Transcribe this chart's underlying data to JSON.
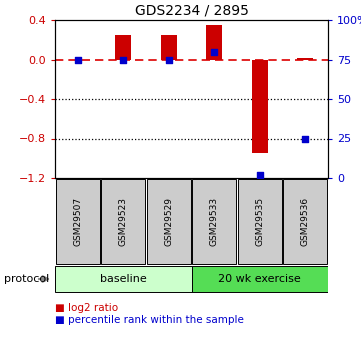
{
  "title": "GDS2234 / 2895",
  "samples": [
    "GSM29507",
    "GSM29523",
    "GSM29529",
    "GSM29533",
    "GSM29535",
    "GSM29536"
  ],
  "log2_ratios": [
    0.0,
    0.25,
    0.25,
    0.35,
    -0.95,
    0.02
  ],
  "percentile_ranks": [
    75,
    75,
    75,
    80,
    2,
    25
  ],
  "protocol_groups": [
    {
      "label": "baseline",
      "start": 0,
      "end": 3,
      "color": "#ccffcc"
    },
    {
      "label": "20 wk exercise",
      "start": 3,
      "end": 6,
      "color": "#55dd55"
    }
  ],
  "ylim_left": [
    -1.2,
    0.4
  ],
  "ylim_right": [
    0,
    100
  ],
  "yticks_left": [
    0.4,
    0.0,
    -0.4,
    -0.8,
    -1.2
  ],
  "yticks_right": [
    100,
    75,
    50,
    25,
    0
  ],
  "ytick_labels_right": [
    "100%",
    "75",
    "50",
    "25",
    "0"
  ],
  "hlines_dotted": [
    -0.4,
    -0.8
  ],
  "hline_dashed": 0.0,
  "bar_color": "#cc0000",
  "dot_color": "#0000cc",
  "left_tick_color": "#cc0000",
  "right_tick_color": "#0000cc",
  "bar_width": 0.35,
  "protocol_label": "protocol",
  "sample_box_color": "#cccccc",
  "legend_items": [
    {
      "label": "log2 ratio",
      "color": "#cc0000"
    },
    {
      "label": "percentile rank within the sample",
      "color": "#0000cc"
    }
  ],
  "figsize": [
    3.61,
    3.45
  ],
  "dpi": 100
}
